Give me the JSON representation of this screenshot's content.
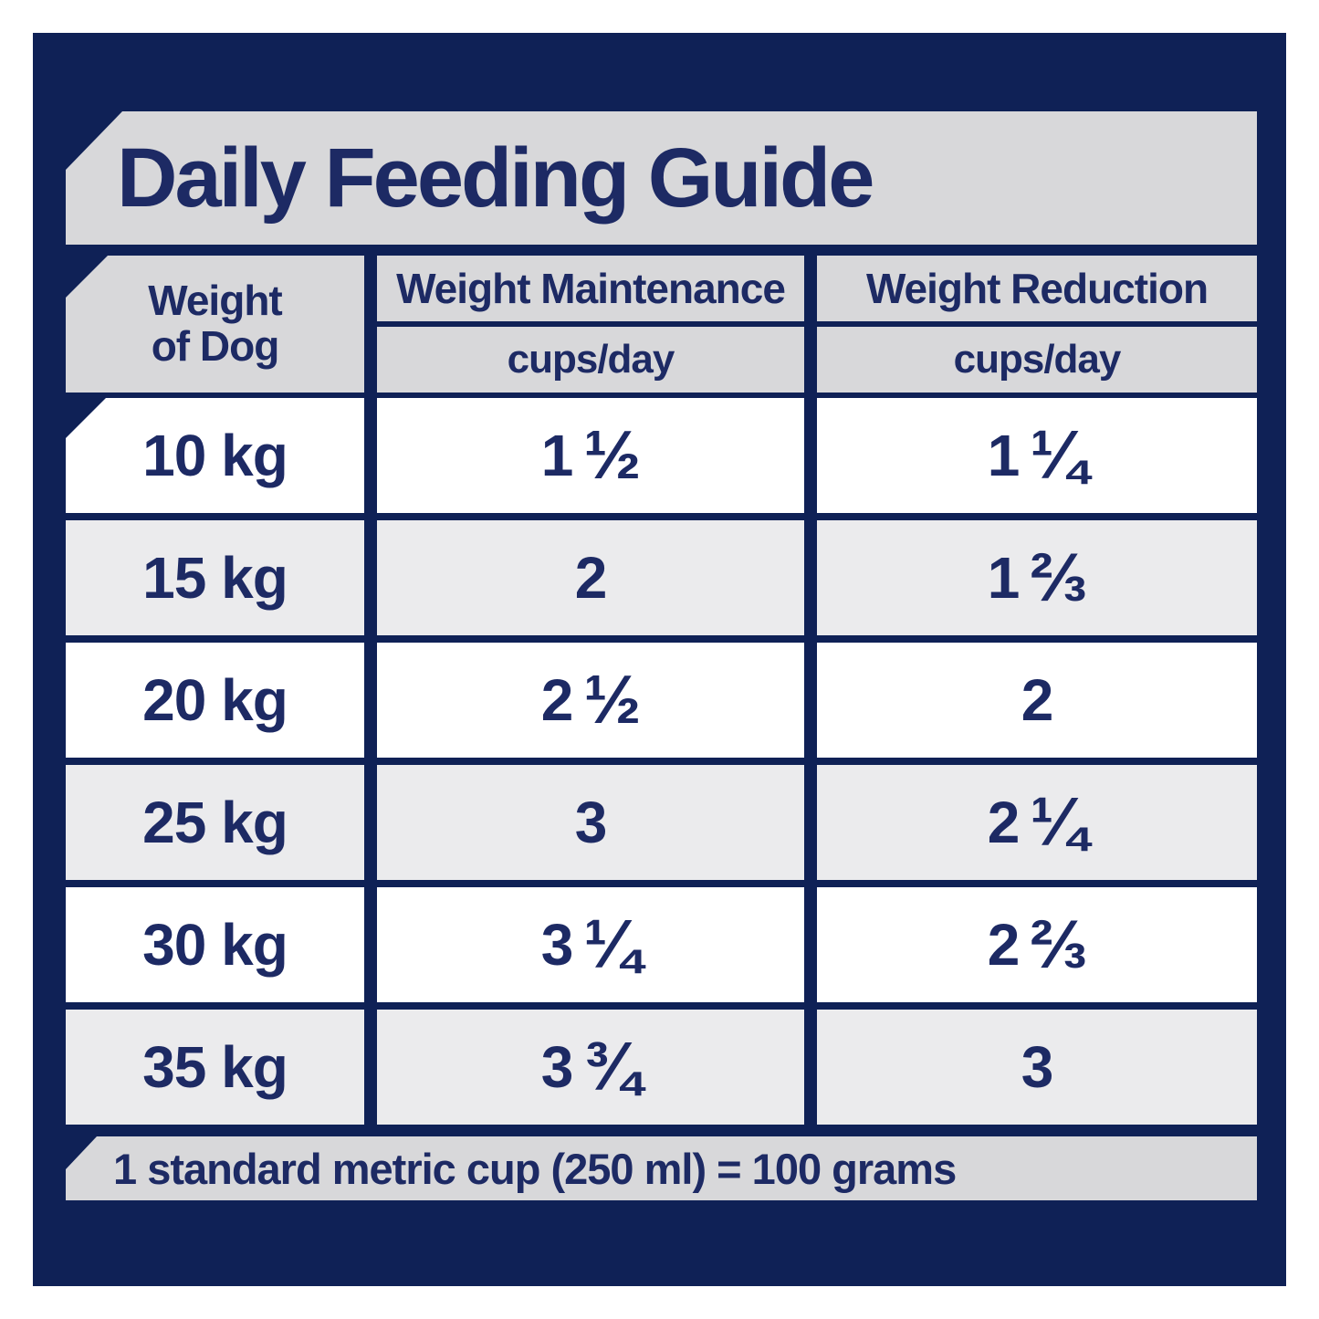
{
  "title": "Daily Feeding Guide",
  "colors": {
    "navy_background": "#0f2156",
    "banner_gray": "#d8d8da",
    "row_alt_gray": "#ebebed",
    "row_white": "#ffffff",
    "text_navy": "#1d2a64"
  },
  "table": {
    "columns": {
      "weight": {
        "line1": "Weight",
        "line2": "of Dog"
      },
      "maintenance": {
        "label": "Weight Maintenance",
        "unit": "cups/day"
      },
      "reduction": {
        "label": "Weight Reduction",
        "unit": "cups/day"
      }
    },
    "rows": [
      {
        "weight": "10 kg",
        "maintenance": {
          "whole": "1",
          "frac": "½"
        },
        "reduction": {
          "whole": "1",
          "frac": "¼"
        }
      },
      {
        "weight": "15 kg",
        "maintenance": {
          "whole": "2",
          "frac": ""
        },
        "reduction": {
          "whole": "1",
          "frac": "⅔"
        }
      },
      {
        "weight": "20 kg",
        "maintenance": {
          "whole": "2",
          "frac": "½"
        },
        "reduction": {
          "whole": "2",
          "frac": ""
        }
      },
      {
        "weight": "25 kg",
        "maintenance": {
          "whole": "3",
          "frac": ""
        },
        "reduction": {
          "whole": "2",
          "frac": "¼"
        }
      },
      {
        "weight": "30 kg",
        "maintenance": {
          "whole": "3",
          "frac": "¼"
        },
        "reduction": {
          "whole": "2",
          "frac": "⅔"
        }
      },
      {
        "weight": "35 kg",
        "maintenance": {
          "whole": "3",
          "frac": "¾"
        },
        "reduction": {
          "whole": "3",
          "frac": ""
        }
      }
    ]
  },
  "footer": {
    "note": "1 standard metric cup (250 ml) = 100 grams"
  },
  "chart_data": {
    "type": "table",
    "title": "Daily Feeding Guide",
    "columns": [
      "Weight of Dog",
      "Weight Maintenance (cups/day)",
      "Weight Reduction (cups/day)"
    ],
    "rows": [
      [
        "10 kg",
        "1 1/2",
        "1 1/4"
      ],
      [
        "15 kg",
        "2",
        "1 2/3"
      ],
      [
        "20 kg",
        "2 1/2",
        "2"
      ],
      [
        "25 kg",
        "3",
        "2 1/4"
      ],
      [
        "30 kg",
        "3 1/4",
        "2 2/3"
      ],
      [
        "35 kg",
        "3 3/4",
        "3"
      ]
    ],
    "note": "1 standard metric cup (250 ml) = 100 grams"
  }
}
